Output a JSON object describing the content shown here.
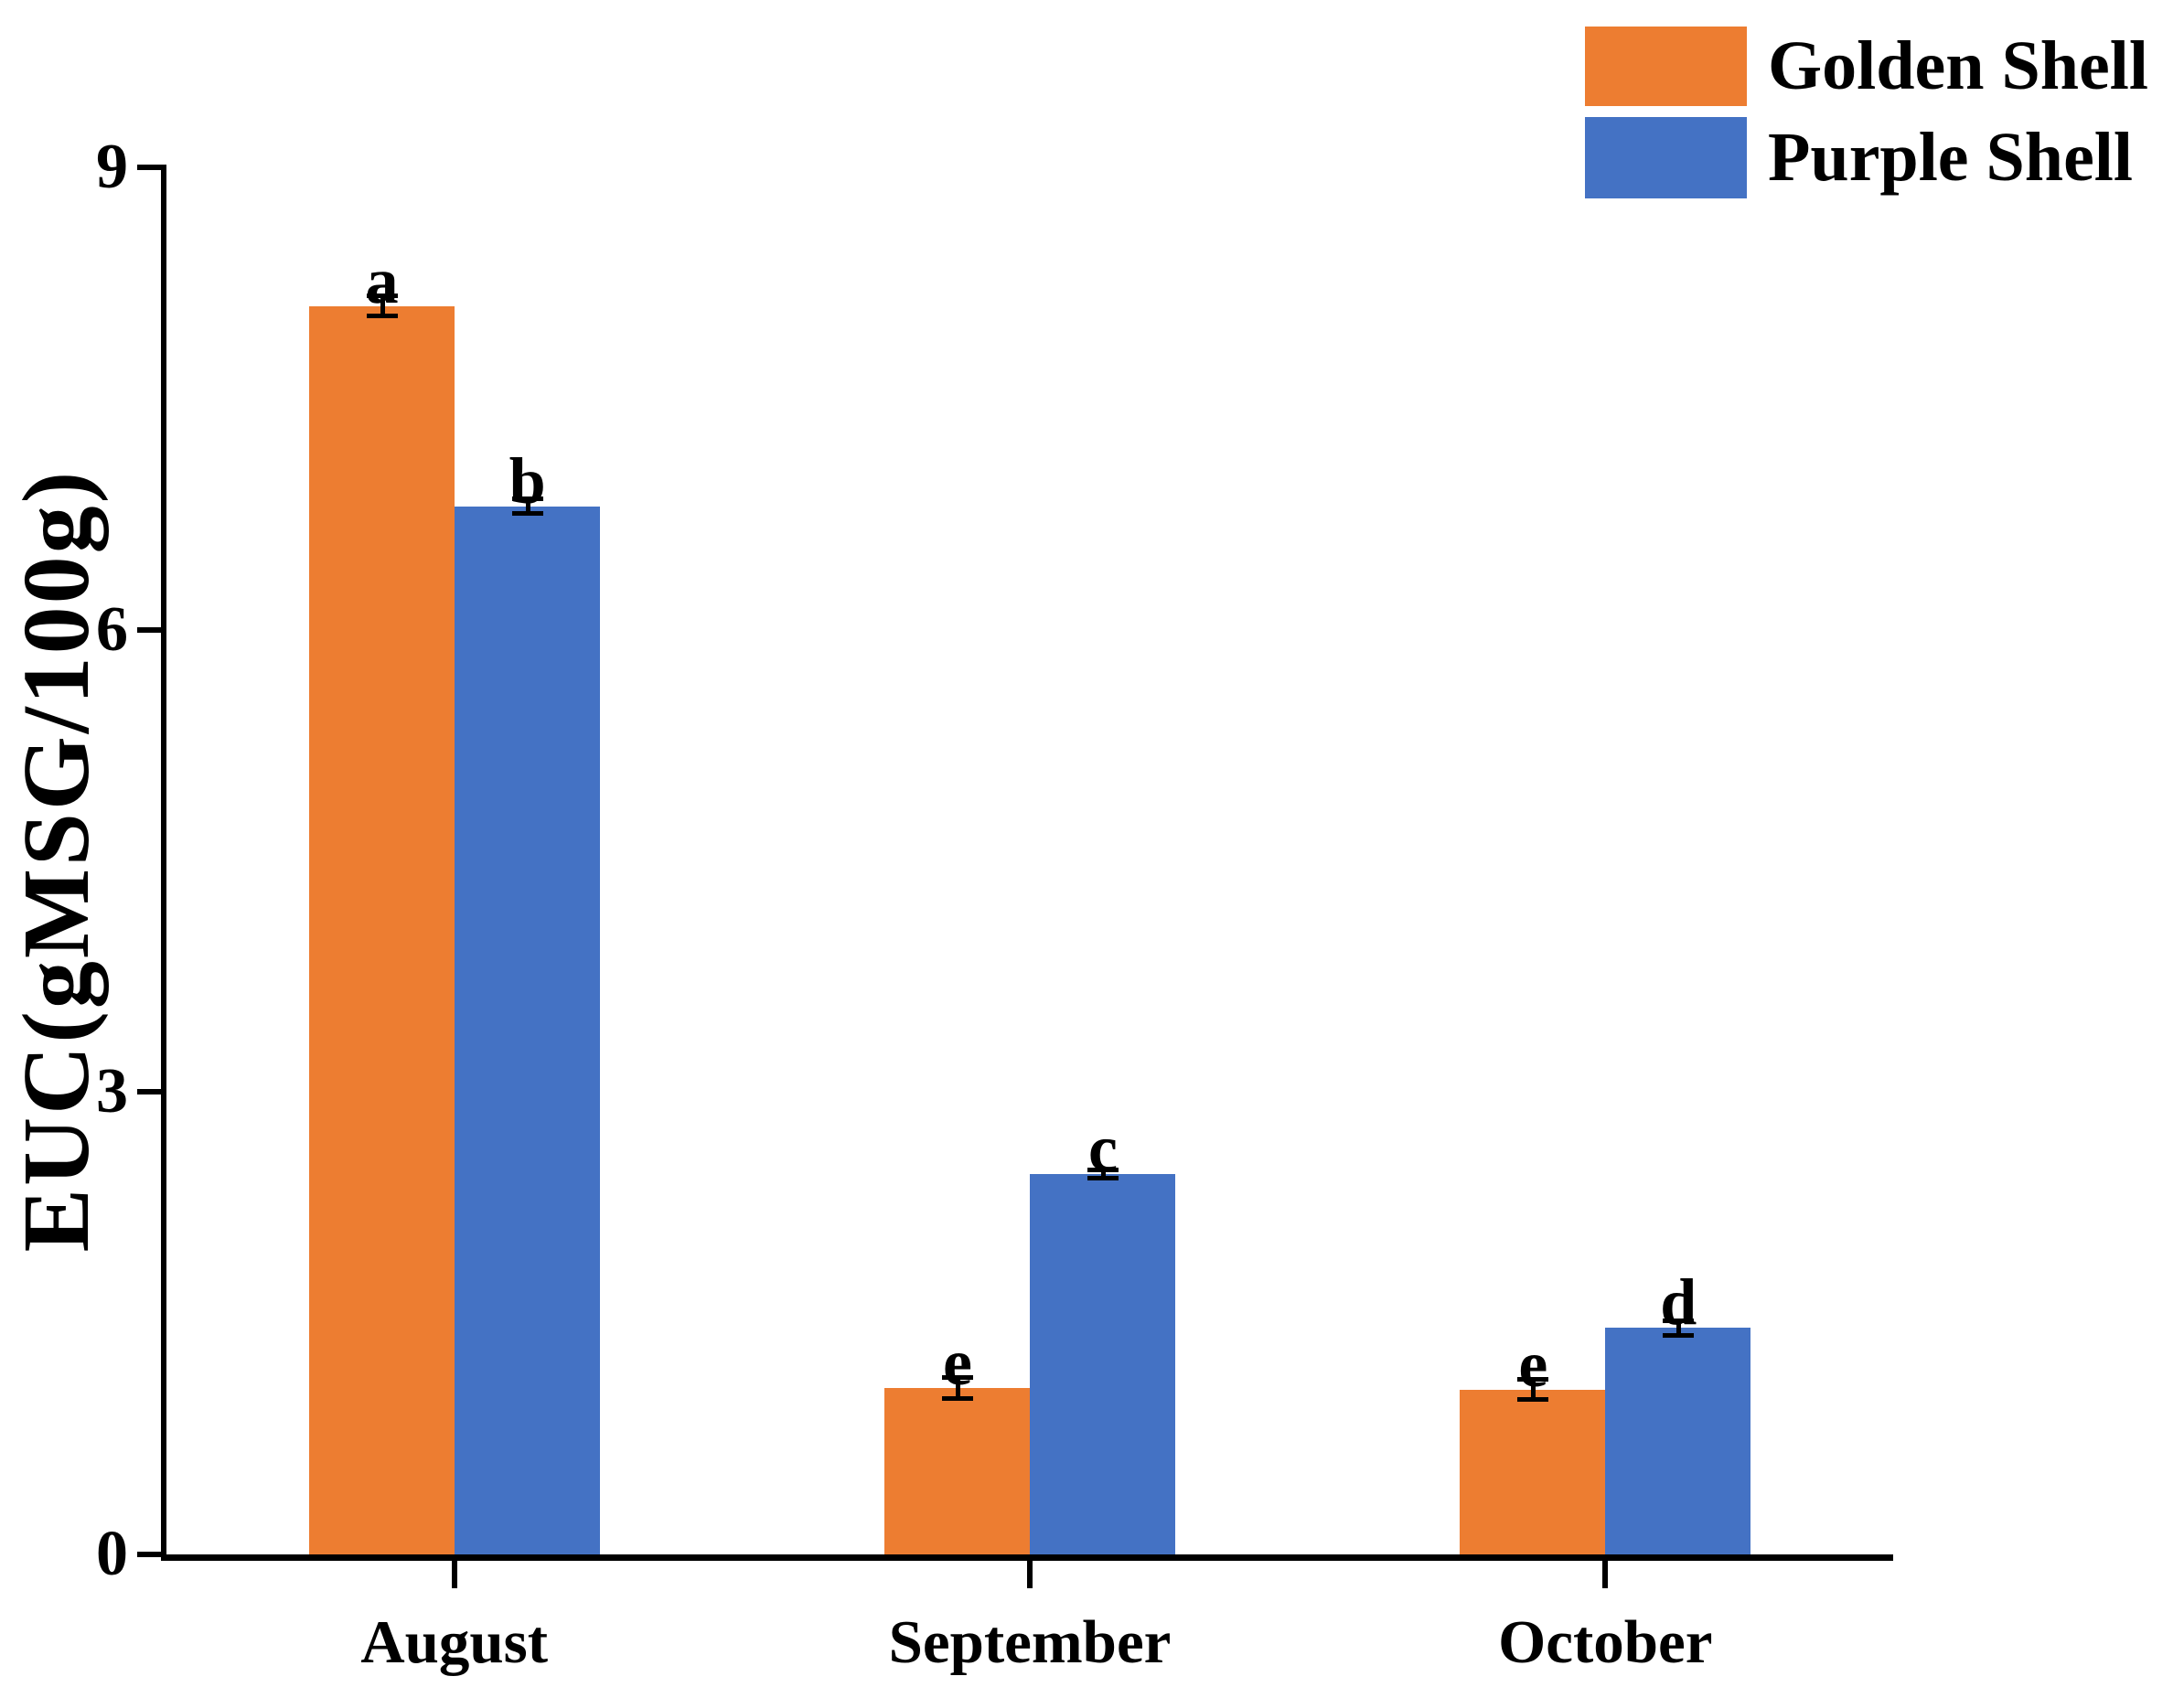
{
  "chart_data": {
    "type": "bar",
    "title": "",
    "ylabel": "EUC(gMSG/100g)",
    "xlabel": "",
    "ylim": [
      0,
      9
    ],
    "yticks": [
      0,
      3,
      6,
      9
    ],
    "grid": false,
    "legend_position": "top-right",
    "categories": [
      "August",
      "September",
      "October"
    ],
    "series": [
      {
        "name": "Golden Shell",
        "color": "#ED7D31",
        "values": [
          8.1,
          1.08,
          1.07
        ],
        "errors": [
          0.07,
          0.07,
          0.07
        ],
        "sig_letters": [
          "a",
          "e",
          "e"
        ]
      },
      {
        "name": "Purple Shell",
        "color": "#4472C4",
        "values": [
          6.8,
          2.47,
          1.47
        ],
        "errors": [
          0.05,
          0.03,
          0.05
        ],
        "sig_letters": [
          "b",
          "c",
          "d"
        ]
      }
    ]
  }
}
